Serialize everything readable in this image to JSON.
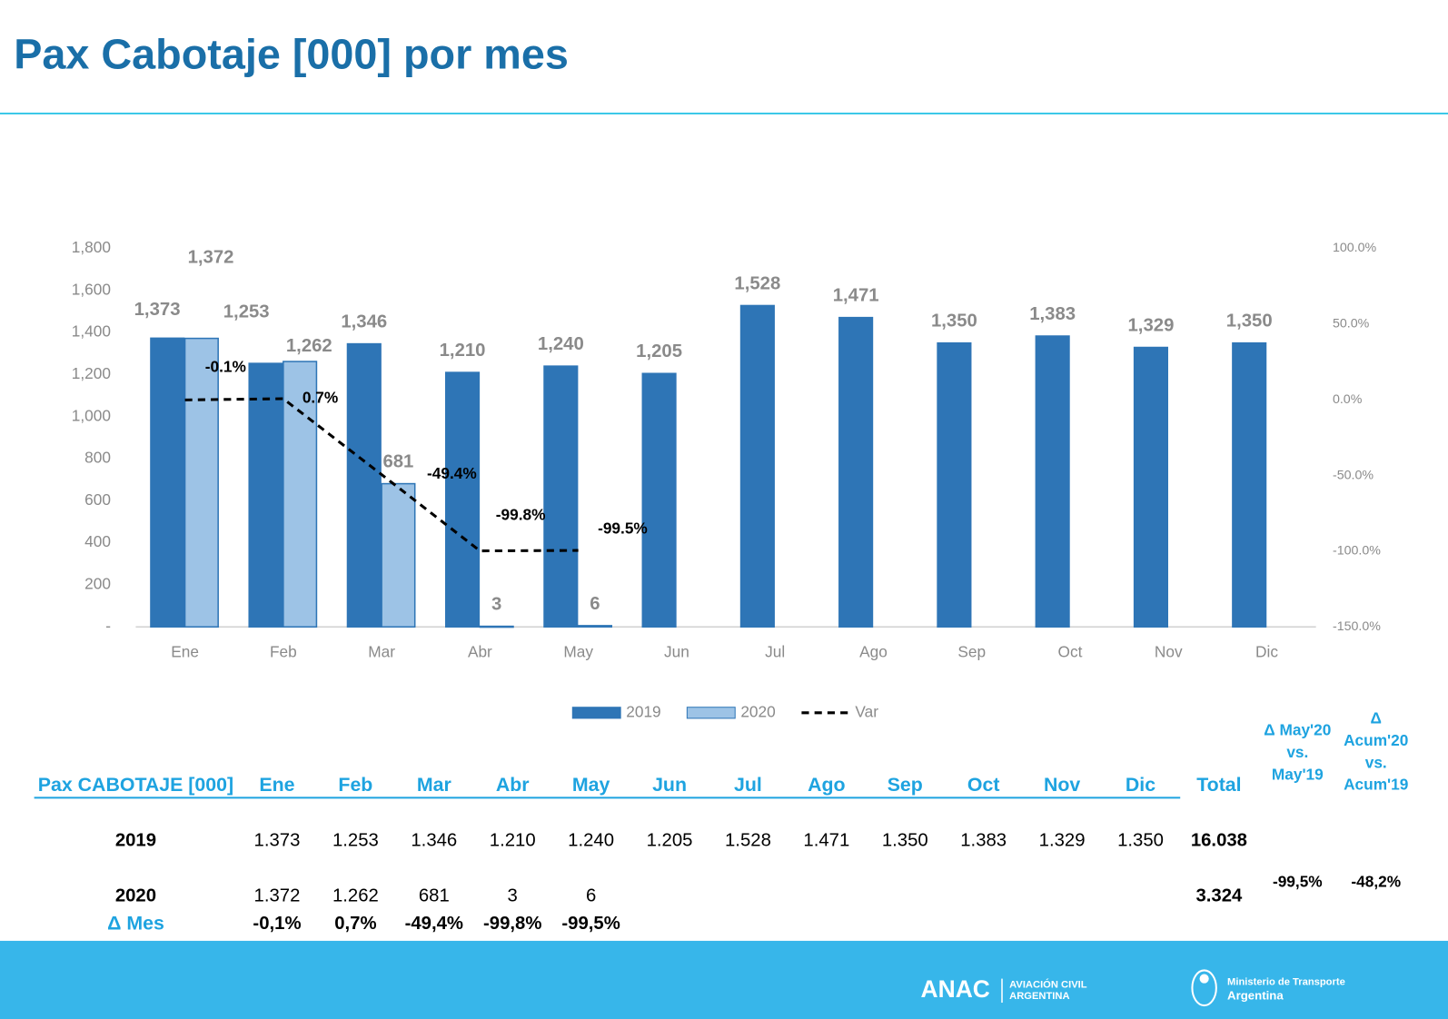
{
  "title": "Pax Cabotaje [000] por mes",
  "chart_data": {
    "type": "bar",
    "categories": [
      "Ene",
      "Feb",
      "Mar",
      "Abr",
      "May",
      "Jun",
      "Jul",
      "Ago",
      "Sep",
      "Oct",
      "Nov",
      "Dic"
    ],
    "series": [
      {
        "name": "2019",
        "color": "#2e75b6",
        "values": [
          1373,
          1253,
          1346,
          1210,
          1240,
          1205,
          1528,
          1471,
          1350,
          1383,
          1329,
          1350
        ],
        "value_labels": [
          "1,373",
          "1,253",
          "1,346",
          "1,210",
          "1,240",
          "1,205",
          "1,528",
          "1,471",
          "1,350",
          "1,383",
          "1,329",
          "1,350"
        ]
      },
      {
        "name": "2020",
        "color": "#9dc3e6",
        "values": [
          1372,
          1262,
          681,
          3,
          6,
          null,
          null,
          null,
          null,
          null,
          null,
          null
        ],
        "value_labels": [
          "1,372",
          "1,262",
          "681",
          "3",
          "6",
          null,
          null,
          null,
          null,
          null,
          null,
          null
        ]
      },
      {
        "name": "Var",
        "type": "line",
        "axis": "y2",
        "color": "#000000",
        "line_style": "dashed",
        "values": [
          -0.1,
          0.7,
          -49.4,
          -99.8,
          -99.5,
          null,
          null,
          null,
          null,
          null,
          null,
          null
        ],
        "value_labels": [
          "-0.1%",
          "0.7%",
          "-49.4%",
          "-99.8%",
          "-99.5%",
          null,
          null,
          null,
          null,
          null,
          null,
          null
        ]
      }
    ],
    "ylim": [
      0,
      1800
    ],
    "yticks": [
      {
        "value": 0,
        "label": "-"
      },
      200,
      400,
      600,
      800,
      {
        "value": 1000,
        "label": "1,000"
      },
      {
        "value": 1200,
        "label": "1,200"
      },
      {
        "value": 1400,
        "label": "1,400"
      },
      {
        "value": 1600,
        "label": "1,600"
      },
      {
        "value": 1800,
        "label": "1,800"
      }
    ],
    "y2lim": [
      -150,
      100
    ],
    "y2ticks": [
      {
        "value": -150,
        "label": "-150.0%"
      },
      {
        "value": -100,
        "label": "-100.0%"
      },
      {
        "value": -50,
        "label": "-50.0%"
      },
      {
        "value": 0,
        "label": "0.0%"
      },
      {
        "value": 50,
        "label": "50.0%"
      },
      {
        "value": 100,
        "label": "100.0%"
      }
    ],
    "grid": false,
    "legend": "bottom"
  },
  "table": {
    "header": [
      [
        "Pax CABOTAJE [000]"
      ],
      [
        "Ene"
      ],
      [
        "Feb"
      ],
      [
        "Mar"
      ],
      [
        "Abr"
      ],
      [
        "May"
      ],
      [
        "Jun"
      ],
      [
        "Jul"
      ],
      [
        "Ago"
      ],
      [
        "Sep"
      ],
      [
        "Oct"
      ],
      [
        "Nov"
      ],
      [
        "Dic"
      ],
      [
        "Total"
      ],
      [
        "Δ May'20",
        "vs.",
        "May'19"
      ],
      [
        "Δ",
        "Acum'20",
        "vs.",
        "Acum'19"
      ]
    ],
    "rows": [
      {
        "label": "2019",
        "months": [
          "1.373",
          "1.253",
          "1.346",
          "1.210",
          "1.240",
          "1.205",
          "1.528",
          "1.471",
          "1.350",
          "1.383",
          "1.329",
          "1.350"
        ],
        "total": "16.038"
      },
      {
        "label": "2020",
        "months": [
          "1.372",
          "1.262",
          "681",
          "3",
          "6"
        ],
        "total": "3.324",
        "delta_month": "-99,5%",
        "delta_acum": "-48,2%"
      },
      {
        "label": "Δ Mes",
        "months": [
          "-0,1%",
          "0,7%",
          "-49,4%",
          "-99,8%",
          "-99,5%"
        ]
      }
    ]
  },
  "footer": {
    "agency": "ANAC",
    "agency_name": [
      "AVIACIÓN CIVIL",
      "ARGENTINA"
    ],
    "ministry": [
      "Ministerio de Transporte",
      "Argentina"
    ]
  }
}
